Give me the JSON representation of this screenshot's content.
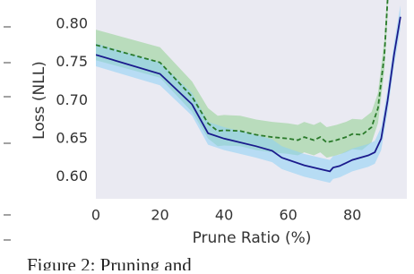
{
  "chart_data": {
    "type": "line",
    "xlabel": "Prune Ratio (%)",
    "ylabel": "Loss (NLL)",
    "xlim": [
      0,
      97
    ],
    "ylim": [
      0.571,
      0.832
    ],
    "xticks": [
      0,
      20,
      40,
      60,
      80
    ],
    "yticks": [
      {
        "value": 0.6,
        "label": "0.60"
      },
      0.65,
      {
        "value": 0.7,
        "label": "0.70"
      },
      0.75,
      {
        "value": 0.8,
        "label": "0.80"
      }
    ],
    "background": "#eaeaf2",
    "series": [
      {
        "color": "#7a9f7a",
        "line_color": "#2a7a2a",
        "dash": true,
        "band_color": "#8fcf8f",
        "x": [
          0,
          20,
          30,
          35,
          38,
          40,
          45,
          50,
          55,
          60,
          63,
          65,
          68,
          70,
          72,
          75,
          78,
          80,
          83,
          86,
          88,
          90,
          91
        ],
        "values": [
          0.773,
          0.75,
          0.705,
          0.67,
          0.66,
          0.661,
          0.66,
          0.655,
          0.652,
          0.65,
          0.648,
          0.652,
          0.648,
          0.652,
          0.645,
          0.648,
          0.652,
          0.656,
          0.655,
          0.665,
          0.69,
          0.76,
          0.832
        ],
        "lower": [
          0.753,
          0.73,
          0.685,
          0.65,
          0.64,
          0.641,
          0.64,
          0.635,
          0.632,
          0.63,
          0.628,
          0.632,
          0.628,
          0.632,
          0.625,
          0.628,
          0.632,
          0.636,
          0.635,
          0.645,
          0.67,
          0.74,
          0.812
        ],
        "upper": [
          0.793,
          0.77,
          0.725,
          0.69,
          0.68,
          0.681,
          0.68,
          0.675,
          0.672,
          0.67,
          0.668,
          0.672,
          0.668,
          0.672,
          0.665,
          0.668,
          0.672,
          0.676,
          0.675,
          0.685,
          0.71,
          0.78,
          0.852
        ]
      },
      {
        "color": "#6fa8dc",
        "line_color": "#1a1a8c",
        "dash": false,
        "band_color": "#8ccff5",
        "x": [
          0,
          20,
          30,
          35,
          40,
          50,
          55,
          58,
          65,
          70,
          73,
          74,
          76,
          78,
          80,
          85,
          87,
          89,
          91,
          93,
          95
        ],
        "values": [
          0.76,
          0.735,
          0.695,
          0.657,
          0.65,
          0.64,
          0.634,
          0.625,
          0.615,
          0.61,
          0.607,
          0.612,
          0.614,
          0.618,
          0.622,
          0.628,
          0.632,
          0.65,
          0.7,
          0.76,
          0.81
        ],
        "lower": [
          0.745,
          0.72,
          0.68,
          0.642,
          0.635,
          0.625,
          0.619,
          0.61,
          0.6,
          0.595,
          0.592,
          0.597,
          0.599,
          0.603,
          0.607,
          0.613,
          0.617,
          0.635,
          0.685,
          0.745,
          0.795
        ],
        "upper": [
          0.775,
          0.75,
          0.71,
          0.672,
          0.665,
          0.655,
          0.649,
          0.64,
          0.63,
          0.625,
          0.622,
          0.627,
          0.629,
          0.633,
          0.637,
          0.643,
          0.647,
          0.665,
          0.715,
          0.775,
          0.825
        ]
      }
    ]
  },
  "caption": "Figure 2: Pruning and"
}
